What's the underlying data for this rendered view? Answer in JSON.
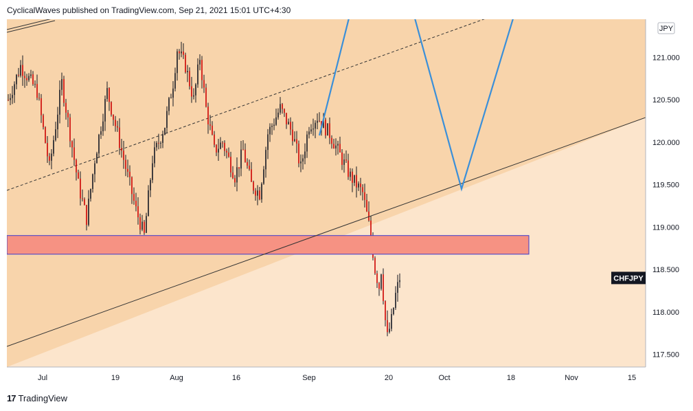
{
  "header": {
    "text": "CyclicalWaves published on TradingView.com, Sep 21, 2021 15:01 UTC+4:30"
  },
  "footer": {
    "brand": "TradingView",
    "logo_icon": "tradingview-logo-icon"
  },
  "colors": {
    "channel_fill": "#f8d4ab",
    "background_fill": "#fce5cc",
    "zone_fill": "#f69283",
    "zone_border": "#3b3bd0",
    "projection_line": "#3a8fd9",
    "candle_body": "#cc0000",
    "candle_wick": "#131722",
    "symbol_badge": "#131722"
  },
  "chart_data": {
    "type": "candlestick",
    "symbol": "CHFJPY",
    "currency": "JPY",
    "y_ticks": [
      "121.000",
      "120.500",
      "120.000",
      "119.500",
      "119.000",
      "118.500",
      "118.000",
      "117.500"
    ],
    "ylim": [
      117.35,
      121.45
    ],
    "x_ticks": [
      "Jul",
      "19",
      "Aug",
      "16",
      "Sep",
      "20",
      "Oct",
      "18",
      "Nov",
      "15"
    ],
    "last_label": "CHFJPY",
    "last_price": 118.4,
    "close_path": [
      [
        0,
        120.5
      ],
      [
        6,
        120.9
      ],
      [
        14,
        120.6
      ],
      [
        20,
        119.7
      ],
      [
        26,
        120.7
      ],
      [
        34,
        119.5
      ],
      [
        38,
        119.1
      ],
      [
        42,
        119.8
      ],
      [
        48,
        120.6
      ],
      [
        52,
        120.2
      ],
      [
        58,
        119.6
      ],
      [
        62,
        119.2
      ],
      [
        66,
        118.9
      ],
      [
        70,
        119.8
      ],
      [
        76,
        120.2
      ],
      [
        80,
        120.7
      ],
      [
        82,
        121.1
      ],
      [
        86,
        120.9
      ],
      [
        90,
        120.5
      ],
      [
        93,
        121.0
      ],
      [
        96,
        120.4
      ],
      [
        100,
        119.9
      ],
      [
        104,
        120.0
      ],
      [
        110,
        119.6
      ],
      [
        114,
        119.9
      ],
      [
        118,
        119.5
      ],
      [
        122,
        119.4
      ],
      [
        126,
        120.1
      ],
      [
        132,
        120.4
      ],
      [
        138,
        120.1
      ],
      [
        142,
        119.7
      ],
      [
        146,
        120.2
      ],
      [
        150,
        120.3
      ],
      [
        156,
        120.1
      ],
      [
        162,
        119.8
      ],
      [
        166,
        119.6
      ],
      [
        172,
        119.4
      ],
      [
        176,
        118.9
      ],
      [
        178,
        118.5
      ],
      [
        180,
        118.3
      ],
      [
        181,
        118.5
      ],
      [
        183,
        117.9
      ],
      [
        184,
        117.7
      ],
      [
        186,
        117.9
      ],
      [
        188,
        118.2
      ],
      [
        190,
        118.4
      ]
    ],
    "support_zone": {
      "from": 118.68,
      "to": 118.9
    },
    "projection_path": [
      [
        151,
        120.08
      ],
      [
        173,
        122.2
      ],
      [
        189,
        122.2
      ],
      [
        220,
        119.45
      ],
      [
        258,
        122.5
      ]
    ]
  }
}
